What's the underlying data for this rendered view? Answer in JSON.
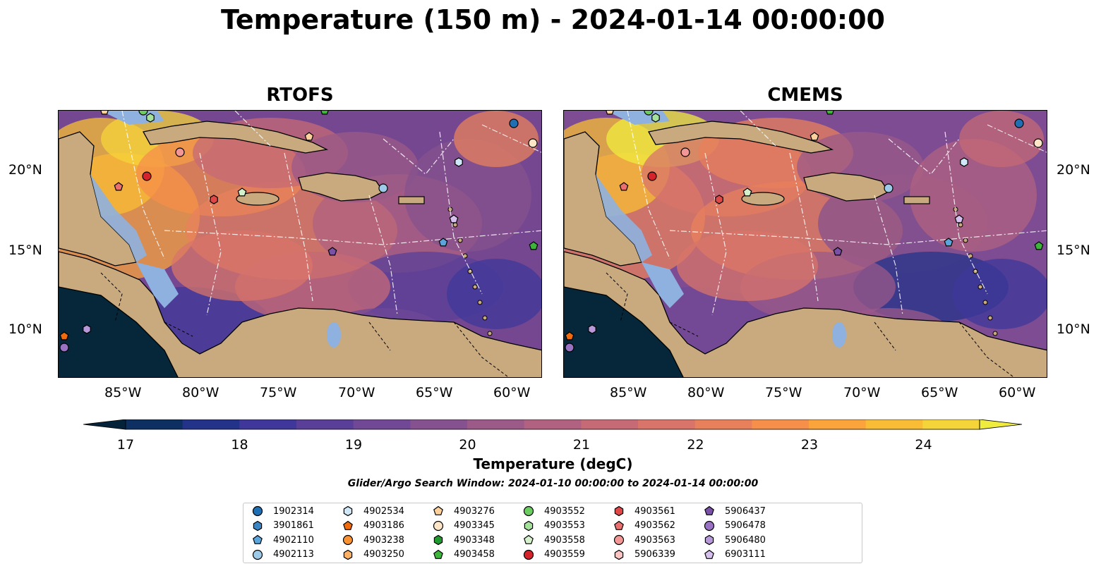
{
  "title": "Temperature (150 m) - 2024-01-14 00:00:00",
  "panels": [
    {
      "title": "RTOFS"
    },
    {
      "title": "CMEMS"
    }
  ],
  "x_ticks": [
    "85°W",
    "80°W",
    "75°W",
    "70°W",
    "65°W",
    "60°W"
  ],
  "y_ticks": [
    "20°N",
    "15°N",
    "10°N"
  ],
  "colorbar": {
    "label": "Temperature (degC)",
    "ticks": [
      "17",
      "18",
      "19",
      "20",
      "21",
      "22",
      "23",
      "24"
    ],
    "colors": [
      "#04233a",
      "#0d2f62",
      "#24338a",
      "#3f389a",
      "#5a3f98",
      "#704896",
      "#85518e",
      "#9b5a88",
      "#b06280",
      "#c66a76",
      "#d8746a",
      "#e8805c",
      "#f58f49",
      "#fba43b",
      "#f8bd34",
      "#f5d43a",
      "#f0ec3e"
    ]
  },
  "map_colors": {
    "land": "#c9a97e",
    "shelf": "#8eb1e0",
    "deep_pacific": "#06263a"
  },
  "search_window": "Glider/Argo Search Window: 2024-01-10 00:00:00 to 2024-01-14 00:00:00",
  "legend": [
    {
      "id": "1902314",
      "color": "#1f6fb4",
      "shape": "circle"
    },
    {
      "id": "3901861",
      "color": "#3a86c4",
      "shape": "hexagon"
    },
    {
      "id": "4902110",
      "color": "#5aa6dc",
      "shape": "pentagon"
    },
    {
      "id": "4902113",
      "color": "#9ecae9",
      "shape": "circle"
    },
    {
      "id": "4902534",
      "color": "#cfe7f6",
      "shape": "hexagon"
    },
    {
      "id": "4903186",
      "color": "#f06b0d",
      "shape": "pentagon"
    },
    {
      "id": "4903238",
      "color": "#f89232",
      "shape": "circle"
    },
    {
      "id": "4903250",
      "color": "#fbb064",
      "shape": "hexagon"
    },
    {
      "id": "4903276",
      "color": "#fdd09c",
      "shape": "pentagon"
    },
    {
      "id": "4903345",
      "color": "#fde5c8",
      "shape": "circle"
    },
    {
      "id": "4903348",
      "color": "#1f9a2e",
      "shape": "hexagon"
    },
    {
      "id": "4903458",
      "color": "#3cb53a",
      "shape": "pentagon"
    },
    {
      "id": "4903552",
      "color": "#6ccc62",
      "shape": "circle"
    },
    {
      "id": "4903553",
      "color": "#a6e19b",
      "shape": "hexagon"
    },
    {
      "id": "4903558",
      "color": "#d4f1cc",
      "shape": "pentagon"
    },
    {
      "id": "4903559",
      "color": "#d4232a",
      "shape": "circle"
    },
    {
      "id": "4903561",
      "color": "#e04848",
      "shape": "hexagon"
    },
    {
      "id": "4903562",
      "color": "#e9706e",
      "shape": "pentagon"
    },
    {
      "id": "4903563",
      "color": "#f29696",
      "shape": "circle"
    },
    {
      "id": "5906339",
      "color": "#f9c4c2",
      "shape": "hexagon"
    },
    {
      "id": "5906437",
      "color": "#7b51a8",
      "shape": "pentagon"
    },
    {
      "id": "5906478",
      "color": "#9a72c4",
      "shape": "circle"
    },
    {
      "id": "5906480",
      "color": "#b798d8",
      "shape": "hexagon"
    },
    {
      "id": "6903111",
      "color": "#d6c0ee",
      "shape": "pentagon"
    }
  ]
}
